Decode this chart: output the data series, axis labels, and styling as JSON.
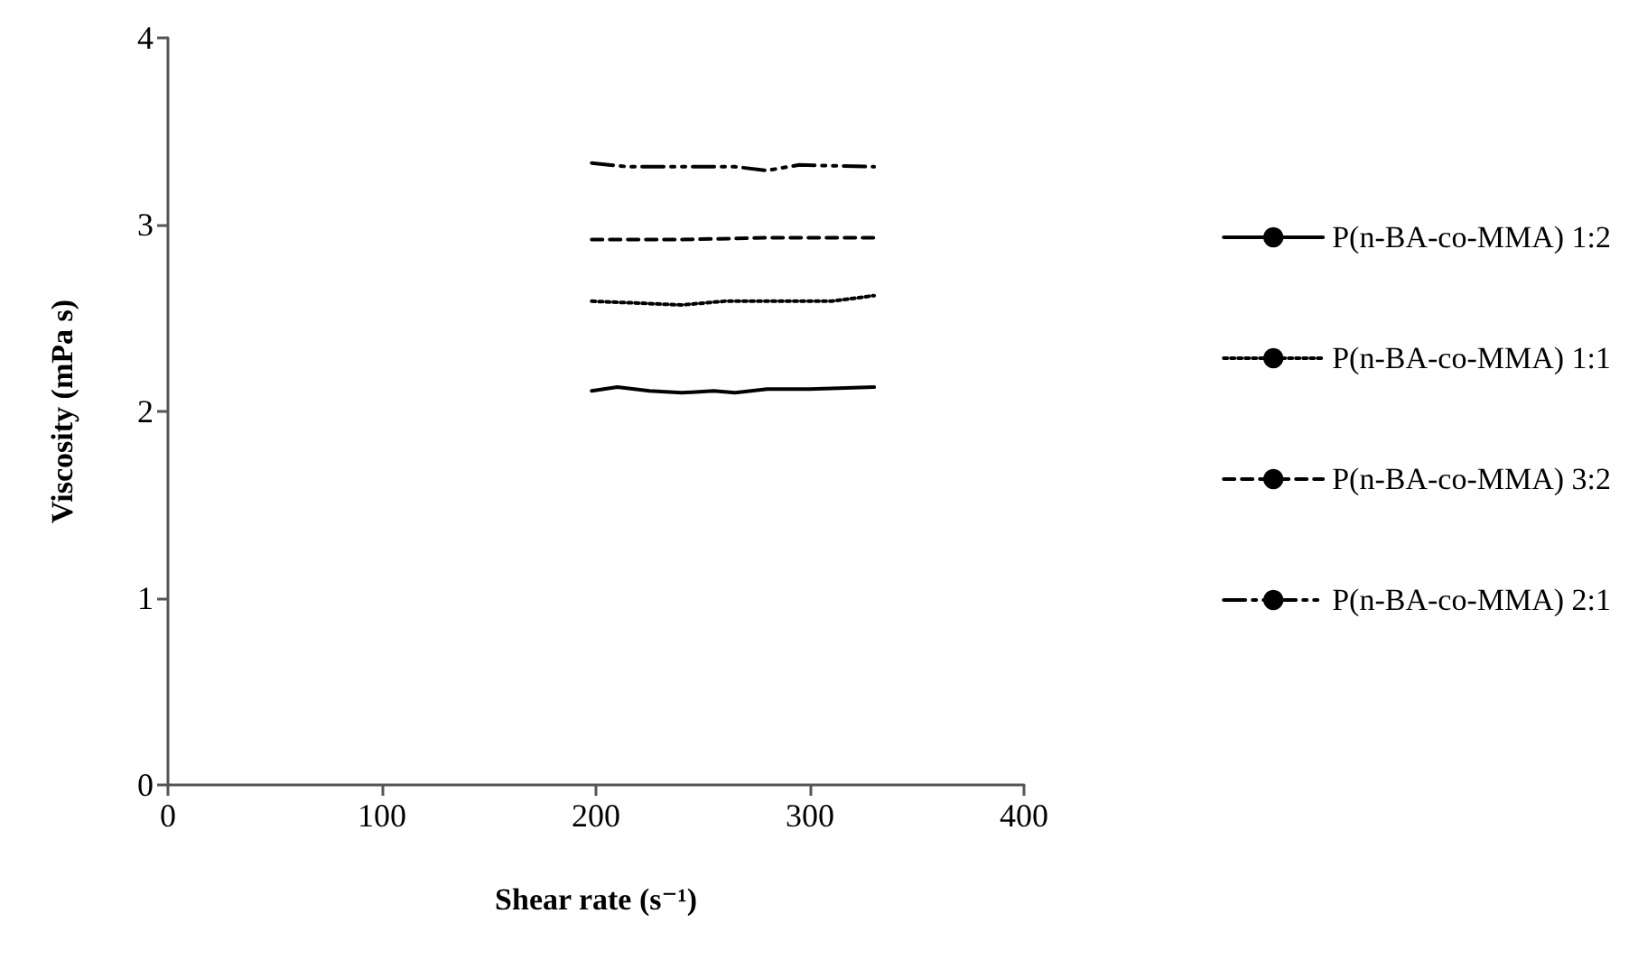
{
  "chart_data": {
    "type": "line",
    "xlabel": "Shear rate (s⁻¹)",
    "ylabel": "Viscosity (mPa s)",
    "xlim": [
      0,
      400
    ],
    "xticks": [
      0,
      100,
      200,
      300,
      400
    ],
    "ylim": [
      0,
      4
    ],
    "yticks": [
      0,
      1,
      2,
      3,
      4
    ],
    "grid": false,
    "legend": "right",
    "marker": "none",
    "series": [
      {
        "name": "P(n-BA-co-MMA) 1:2",
        "color": "#000000",
        "line_style": "solid",
        "x": [
          198,
          210,
          225,
          240,
          255,
          265,
          280,
          300,
          330
        ],
        "values": [
          2.11,
          2.13,
          2.11,
          2.1,
          2.11,
          2.1,
          2.12,
          2.12,
          2.13
        ]
      },
      {
        "name": "P(n-BA-co-MMA) 1:1",
        "color": "#000000",
        "line_style": "dotted",
        "x": [
          198,
          220,
          240,
          260,
          280,
          310,
          330
        ],
        "values": [
          2.59,
          2.58,
          2.57,
          2.59,
          2.59,
          2.59,
          2.62
        ]
      },
      {
        "name": "P(n-BA-co-MMA) 3:2",
        "color": "#000000",
        "line_style": "dashed",
        "x": [
          198,
          240,
          280,
          330
        ],
        "values": [
          2.92,
          2.92,
          2.93,
          2.93
        ]
      },
      {
        "name": "P(n-BA-co-MMA) 2:1",
        "color": "#000000",
        "line_style": "dashdot",
        "x": [
          198,
          215,
          240,
          265,
          280,
          295,
          330
        ],
        "values": [
          3.33,
          3.31,
          3.31,
          3.31,
          3.29,
          3.32,
          3.31
        ]
      }
    ]
  }
}
